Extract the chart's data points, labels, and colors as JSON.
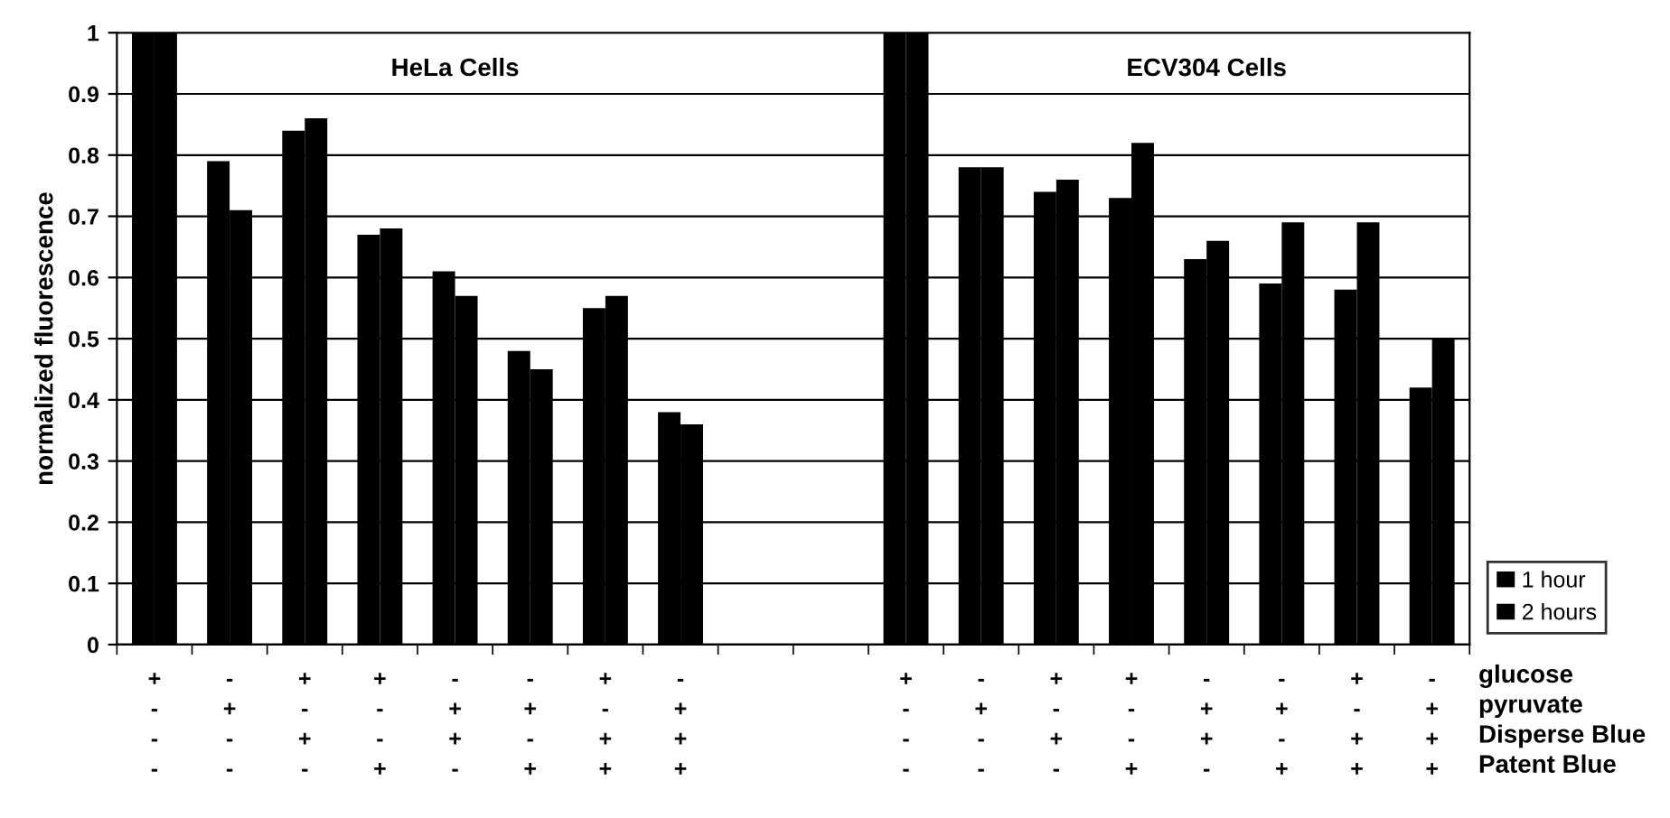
{
  "chart_data": {
    "type": "bar",
    "ylabel": "normalized fluorescence",
    "categories": [
      "+\n-\n-\n-",
      "-\n+\n-\n-",
      "+\n-\n+\n-",
      "+\n-\n-\n+",
      "-\n+\n+\n-",
      "-\n+\n-\n+",
      "+\n-\n+\n+",
      "-\n+\n+\n+",
      null,
      null,
      "+\n-\n-\n-",
      "-\n+\n-\n-",
      "+\n-\n+\n-",
      "+\n-\n-\n+",
      "-\n+\n+\n-",
      "-\n+\n-\n+",
      "+\n-\n+\n+",
      "-\n+\n+\n+"
    ],
    "series": [
      {
        "name": "1 hour",
        "color": "#000000",
        "values": [
          1.0,
          0.79,
          0.84,
          0.67,
          0.61,
          0.48,
          0.55,
          0.38,
          null,
          null,
          1.0,
          0.78,
          0.74,
          0.73,
          0.63,
          0.59,
          0.58,
          0.42
        ]
      },
      {
        "name": "2 hours",
        "color": "#000000",
        "values": [
          1.0,
          0.71,
          0.86,
          0.68,
          0.57,
          0.45,
          0.57,
          0.36,
          null,
          null,
          1.0,
          0.78,
          0.76,
          0.82,
          0.66,
          0.69,
          0.69,
          0.5
        ]
      }
    ],
    "annotations": [
      "HeLa Cells",
      "ECV304 Cells",
      "glucose",
      "pyruvate",
      "Disperse Blue",
      "Patent Blue"
    ],
    "ylim": [
      0,
      1
    ],
    "yticks": [
      0,
      0.1,
      0.2,
      0.3,
      0.4,
      0.5,
      0.6,
      0.7,
      0.8,
      0.9,
      1
    ],
    "grid": "y",
    "legend": "bottom right"
  }
}
